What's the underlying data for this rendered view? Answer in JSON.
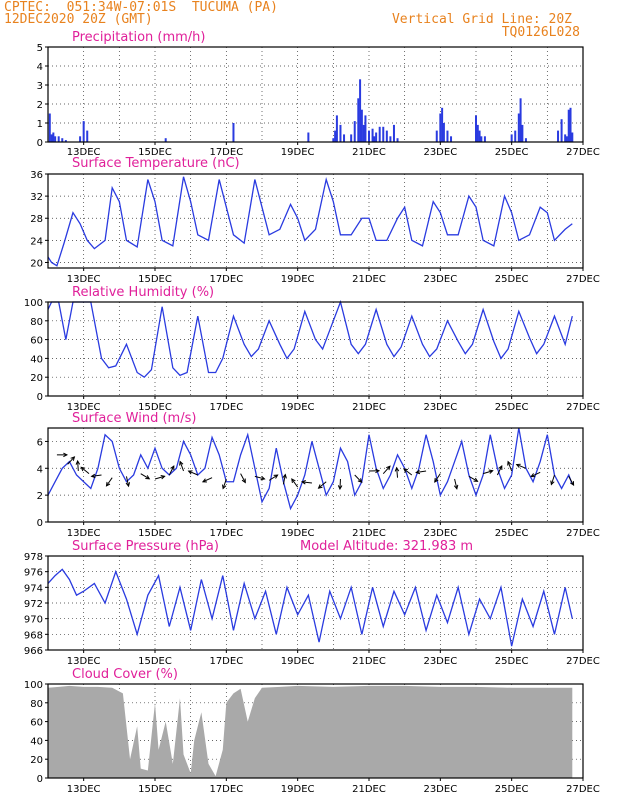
{
  "header": {
    "line1": "CPTEC:  051:34W-07:01S  TUCUMA (PA)",
    "line2": "12DEC2020 20Z (GMT)",
    "right1": "Vertical Grid Line: 20Z",
    "right2": "TQ0126L028"
  },
  "colors": {
    "header": "#e8821e",
    "title": "#e0209a",
    "series": "#2a3be0",
    "cloud": "#a9a9a9",
    "grid": "#333333"
  },
  "chart_data": [
    {
      "id": "precip",
      "type": "bar",
      "title": "Precipitation (mm/h)",
      "ylim": [
        0,
        5
      ],
      "yticks": [
        0,
        1,
        2,
        3,
        4,
        5
      ],
      "xtick_labels": [
        "13DEC",
        "15DEC",
        "17DEC",
        "19DEC",
        "21DEC",
        "23DEC",
        "25DEC",
        "27DEC"
      ],
      "x_unit": "days since 12DEC2020 20Z",
      "x": [
        0.05,
        0.1,
        0.15,
        0.2,
        0.3,
        0.4,
        0.5,
        0.9,
        1.0,
        1.1,
        3.3,
        5.2,
        7.3,
        8.0,
        8.05,
        8.1,
        8.2,
        8.3,
        8.5,
        8.6,
        8.7,
        8.75,
        8.8,
        8.85,
        8.9,
        9.0,
        9.1,
        9.15,
        9.2,
        9.3,
        9.4,
        9.5,
        9.6,
        9.7,
        9.8,
        10.9,
        11.0,
        11.05,
        11.1,
        11.2,
        11.3,
        12.0,
        12.05,
        12.1,
        12.15,
        12.25,
        13.0,
        13.1,
        13.2,
        13.25,
        13.3,
        13.4,
        14.3,
        14.4,
        14.5,
        14.55,
        14.6,
        14.65,
        14.7
      ],
      "values": [
        1.5,
        0.4,
        0.5,
        0.3,
        0.3,
        0.2,
        0.1,
        0.3,
        1.1,
        0.6,
        0.2,
        1.0,
        0.5,
        0.2,
        0.6,
        1.4,
        0.9,
        0.4,
        0.4,
        1.1,
        2.3,
        3.3,
        1.7,
        0.9,
        1.4,
        0.6,
        0.7,
        0.3,
        0.5,
        0.8,
        0.8,
        0.6,
        0.3,
        0.9,
        0.2,
        0.6,
        1.5,
        1.8,
        1.0,
        0.6,
        0.3,
        1.4,
        0.9,
        0.6,
        0.3,
        0.3,
        0.4,
        0.6,
        1.5,
        2.3,
        0.9,
        0.2,
        0.6,
        1.2,
        0.4,
        0.3,
        1.7,
        1.8,
        0.5
      ]
    },
    {
      "id": "temp",
      "type": "line",
      "title": "Surface Temperature (nC)",
      "ylim": [
        19,
        36
      ],
      "yticks": [
        20,
        24,
        28,
        32,
        36
      ],
      "xtick_labels": [
        "13DEC",
        "15DEC",
        "17DEC",
        "19DEC",
        "21DEC",
        "23DEC",
        "25DEC",
        "27DEC"
      ],
      "x_unit": "days since 12DEC2020 20Z",
      "x": [
        0,
        0.1,
        0.25,
        0.45,
        0.7,
        0.9,
        1.1,
        1.3,
        1.6,
        1.8,
        2.0,
        2.2,
        2.5,
        2.8,
        3.0,
        3.2,
        3.5,
        3.8,
        4.0,
        4.2,
        4.5,
        4.8,
        5.0,
        5.2,
        5.5,
        5.8,
        6.0,
        6.2,
        6.5,
        6.8,
        7.0,
        7.2,
        7.5,
        7.8,
        8.0,
        8.2,
        8.5,
        8.8,
        9.0,
        9.2,
        9.5,
        9.8,
        10.0,
        10.2,
        10.5,
        10.8,
        11.0,
        11.2,
        11.5,
        11.8,
        12.0,
        12.2,
        12.5,
        12.8,
        13.0,
        13.2,
        13.5,
        13.8,
        14.0,
        14.2,
        14.5,
        14.7
      ],
      "values": [
        21,
        20,
        19.4,
        23.5,
        29,
        27,
        24,
        22.5,
        24,
        33.5,
        31,
        24,
        22.8,
        35,
        31,
        24,
        23,
        35.5,
        31,
        25,
        24,
        35,
        30,
        25,
        23.5,
        35,
        30,
        25,
        26,
        30.5,
        28,
        24,
        26,
        35,
        31,
        25,
        25,
        28,
        28,
        24,
        24,
        28,
        30,
        24,
        23,
        31,
        29,
        25,
        25,
        32,
        30,
        24,
        23,
        32,
        29,
        24,
        25,
        30,
        29,
        24,
        26,
        27
      ]
    },
    {
      "id": "rh",
      "type": "line",
      "title": "Relative Humidity (%)",
      "ylim": [
        0,
        100
      ],
      "yticks": [
        0,
        20,
        40,
        60,
        80,
        100
      ],
      "xtick_labels": [
        "13DEC",
        "15DEC",
        "17DEC",
        "19DEC",
        "21DEC",
        "23DEC",
        "25DEC",
        "27DEC"
      ],
      "x_unit": "days since 12DEC2020 20Z",
      "x": [
        0,
        0.1,
        0.3,
        0.5,
        0.7,
        0.9,
        1.2,
        1.5,
        1.7,
        1.9,
        2.2,
        2.5,
        2.7,
        2.9,
        3.2,
        3.5,
        3.7,
        3.9,
        4.2,
        4.5,
        4.7,
        4.9,
        5.2,
        5.5,
        5.7,
        5.9,
        6.2,
        6.5,
        6.7,
        6.9,
        7.2,
        7.5,
        7.7,
        7.9,
        8.2,
        8.5,
        8.7,
        8.9,
        9.2,
        9.5,
        9.7,
        9.9,
        10.2,
        10.5,
        10.7,
        10.9,
        11.2,
        11.5,
        11.7,
        11.9,
        12.2,
        12.5,
        12.7,
        12.9,
        13.2,
        13.5,
        13.7,
        13.9,
        14.2,
        14.5,
        14.7
      ],
      "values": [
        92,
        100,
        100,
        60,
        100,
        100,
        100,
        40,
        30,
        32,
        55,
        25,
        20,
        28,
        95,
        30,
        22,
        25,
        85,
        25,
        25,
        40,
        85,
        55,
        42,
        50,
        80,
        55,
        40,
        50,
        90,
        60,
        50,
        70,
        100,
        55,
        45,
        55,
        92,
        55,
        42,
        52,
        85,
        55,
        42,
        50,
        80,
        58,
        45,
        55,
        92,
        58,
        40,
        50,
        90,
        62,
        45,
        55,
        85,
        55,
        85
      ]
    },
    {
      "id": "wind",
      "type": "line",
      "title": "Surface Wind (m/s)",
      "ylim": [
        0,
        7
      ],
      "yticks": [
        0,
        2,
        4,
        6
      ],
      "xtick_labels": [
        "13DEC",
        "15DEC",
        "17DEC",
        "19DEC",
        "21DEC",
        "23DEC",
        "25DEC",
        "27DEC"
      ],
      "x_unit": "days since 12DEC2020 20Z",
      "x": [
        0,
        0.2,
        0.4,
        0.6,
        0.8,
        1.0,
        1.2,
        1.4,
        1.6,
        1.8,
        2.0,
        2.2,
        2.4,
        2.6,
        2.8,
        3.0,
        3.2,
        3.4,
        3.6,
        3.8,
        4.0,
        4.2,
        4.4,
        4.6,
        4.8,
        5.0,
        5.2,
        5.4,
        5.6,
        5.8,
        6.0,
        6.2,
        6.4,
        6.6,
        6.8,
        7.0,
        7.2,
        7.4,
        7.6,
        7.8,
        8.0,
        8.2,
        8.4,
        8.6,
        8.8,
        9.0,
        9.2,
        9.4,
        9.6,
        9.8,
        10.0,
        10.2,
        10.4,
        10.6,
        10.8,
        11.0,
        11.2,
        11.4,
        11.6,
        11.8,
        12.0,
        12.2,
        12.4,
        12.6,
        12.8,
        13.0,
        13.2,
        13.4,
        13.6,
        13.8,
        14.0,
        14.2,
        14.4,
        14.6,
        14.7
      ],
      "values": [
        2,
        3,
        4,
        4.5,
        3.5,
        3,
        2.5,
        4,
        6.5,
        6,
        4,
        3,
        3.5,
        5,
        4,
        5.5,
        4,
        3.5,
        4,
        6,
        5,
        3.5,
        4,
        6.3,
        5,
        3,
        3,
        5,
        6.5,
        4,
        1.5,
        2.5,
        5.5,
        3,
        1,
        2,
        3.5,
        6,
        4,
        2,
        3,
        5.5,
        4.5,
        2,
        3,
        6.5,
        4,
        2.5,
        3.5,
        5,
        4,
        2.5,
        4,
        6.5,
        4.5,
        2,
        3,
        4.5,
        6,
        3.5,
        2,
        3.5,
        6.5,
        4,
        2.5,
        3.5,
        7,
        4,
        3,
        4.5,
        6.5,
        3.5,
        2.5,
        3.5,
        2.8
      ],
      "arrows_x": [
        0.25,
        0.55,
        0.85,
        1.15,
        1.5,
        1.8,
        2.2,
        2.6,
        3.0,
        3.4,
        3.8,
        4.2,
        4.6,
        5.0,
        5.4,
        5.8,
        6.2,
        6.6,
        7.0,
        7.4,
        7.8,
        8.2,
        8.6,
        9.0,
        9.4,
        9.8,
        10.2,
        10.6,
        11.0,
        11.4,
        11.8,
        12.2,
        12.6,
        13.0,
        13.4,
        13.8,
        14.2,
        14.6
      ],
      "arrows_y": [
        5,
        4.3,
        3.8,
        3.6,
        3.5,
        3.3,
        3.4,
        3.6,
        3.2,
        3.5,
        3.8,
        3.5,
        3.3,
        3.2,
        3.6,
        3.4,
        3.1,
        2.8,
        2.6,
        2.9,
        3.0,
        3.2,
        3.5,
        3.8,
        3.6,
        3.3,
        3.5,
        3.8,
        3.6,
        3.2,
        3.4,
        3.6,
        3.5,
        3.8,
        4.0,
        3.7,
        3.5,
        3.4
      ]
    },
    {
      "id": "pres",
      "type": "line",
      "title": "Surface Pressure (hPa)",
      "annotation": "Model Altitude: 321.983 m",
      "ylim": [
        966,
        978
      ],
      "yticks": [
        966,
        968,
        970,
        972,
        974,
        976,
        978
      ],
      "xtick_labels": [
        "13DEC",
        "15DEC",
        "17DEC",
        "19DEC",
        "21DEC",
        "23DEC",
        "25DEC",
        "27DEC"
      ],
      "x_unit": "days since 12DEC2020 20Z",
      "x": [
        0,
        0.2,
        0.4,
        0.6,
        0.8,
        1.0,
        1.3,
        1.6,
        1.9,
        2.2,
        2.5,
        2.8,
        3.1,
        3.4,
        3.7,
        4.0,
        4.3,
        4.6,
        4.9,
        5.2,
        5.5,
        5.8,
        6.1,
        6.4,
        6.7,
        7.0,
        7.3,
        7.6,
        7.9,
        8.2,
        8.5,
        8.8,
        9.1,
        9.4,
        9.7,
        10.0,
        10.3,
        10.6,
        10.9,
        11.2,
        11.5,
        11.8,
        12.1,
        12.4,
        12.7,
        13.0,
        13.3,
        13.6,
        13.9,
        14.2,
        14.5,
        14.7
      ],
      "values": [
        974.5,
        975.5,
        976.3,
        975,
        973,
        973.5,
        974.5,
        972,
        976,
        972.5,
        968,
        973,
        975.5,
        969,
        974,
        968.5,
        975,
        970,
        975.5,
        968.5,
        974.5,
        970,
        973.5,
        968,
        974,
        970.5,
        973,
        967,
        973.5,
        970,
        974,
        968,
        974,
        969,
        973.5,
        970.5,
        974,
        968.5,
        973,
        969.5,
        974,
        968,
        972.5,
        970,
        974,
        966.5,
        972.5,
        969,
        973.5,
        968,
        974,
        970
      ]
    },
    {
      "id": "cloud",
      "type": "area",
      "title": "Cloud Cover (%)",
      "ylim": [
        0,
        100
      ],
      "yticks": [
        0,
        20,
        40,
        60,
        80,
        100
      ],
      "xtick_labels": [
        "13DEC",
        "15DEC",
        "17DEC",
        "19DEC",
        "21DEC",
        "23DEC",
        "25DEC",
        "27DEC"
      ],
      "x_unit": "days since 12DEC2020 20Z",
      "x": [
        0,
        0.3,
        0.6,
        1.0,
        1.4,
        1.8,
        2.1,
        2.3,
        2.5,
        2.6,
        2.8,
        3.0,
        3.1,
        3.3,
        3.5,
        3.7,
        3.8,
        4.0,
        4.1,
        4.3,
        4.5,
        4.7,
        4.9,
        5.0,
        5.2,
        5.4,
        5.6,
        5.8,
        6.0,
        6.5,
        7.0,
        8.0,
        9.0,
        10.0,
        11.0,
        12.0,
        13.0,
        14.0,
        14.7
      ],
      "values": [
        96,
        97,
        98,
        97,
        97,
        96,
        90,
        20,
        55,
        10,
        8,
        80,
        30,
        60,
        15,
        85,
        25,
        5,
        40,
        70,
        15,
        2,
        30,
        80,
        90,
        95,
        60,
        85,
        96,
        97,
        98,
        97,
        98,
        98,
        97,
        97,
        96,
        96,
        96
      ]
    }
  ]
}
